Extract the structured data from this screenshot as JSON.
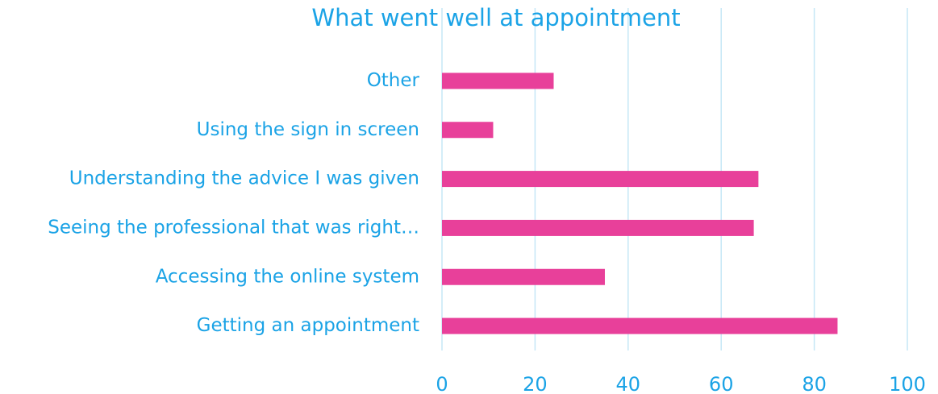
{
  "chart_data": {
    "type": "bar",
    "orientation": "horizontal",
    "title": "What went well at appointment",
    "categories": [
      "Other",
      "Using the sign in screen",
      "Understanding the advice I was given",
      "Seeing the professional that was right…",
      "Accessing the online system",
      "Getting an appointment"
    ],
    "values": [
      24,
      11,
      68,
      67,
      35,
      85
    ],
    "color": "#e8409a",
    "xlim": [
      0,
      100
    ],
    "xticks": [
      0,
      20,
      40,
      60,
      80,
      100
    ],
    "grid": true
  }
}
